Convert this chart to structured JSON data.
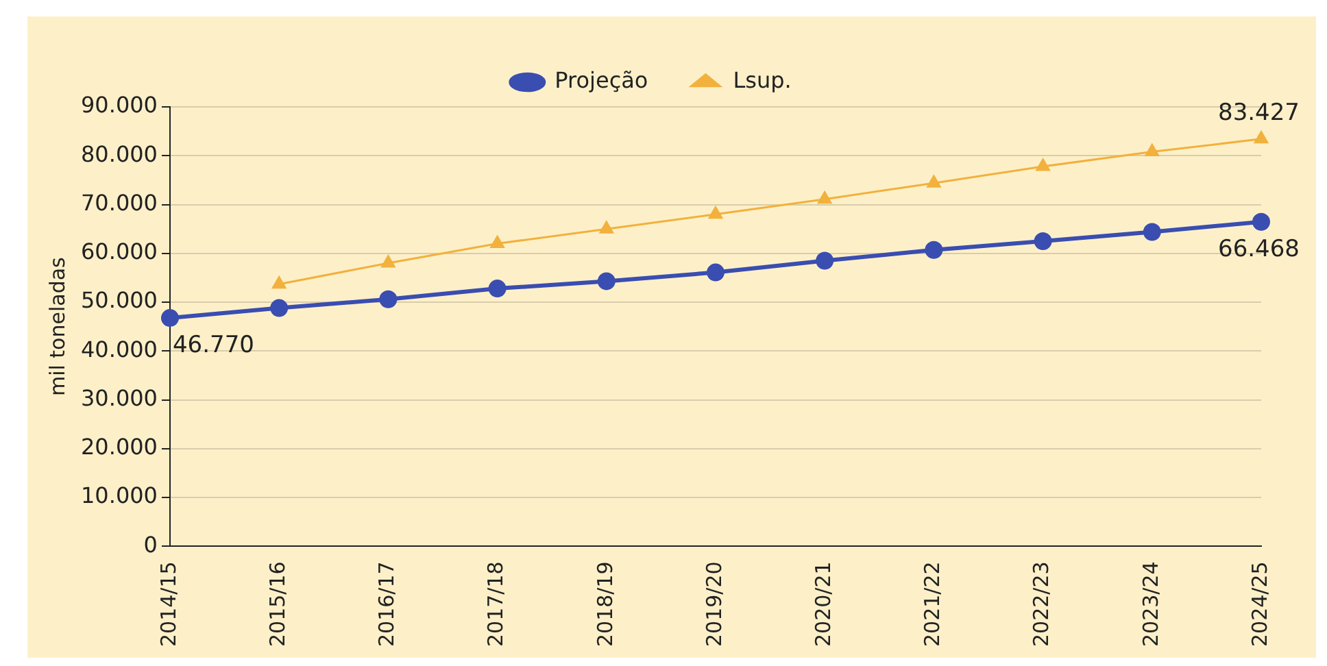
{
  "chart_data": {
    "type": "line",
    "ylabel": "mil toneladas",
    "categories": [
      "2014/15",
      "2015/16",
      "2016/17",
      "2017/18",
      "2018/19",
      "2019/20",
      "2020/21",
      "2021/22",
      "2022/23",
      "2023/24",
      "2024/25"
    ],
    "series": [
      {
        "name": "Projeção",
        "color": "#3a4db0",
        "marker": "circle",
        "values": [
          46770,
          48800,
          50600,
          52800,
          54300,
          56100,
          58500,
          60700,
          62500,
          64400,
          66468
        ],
        "value_labels": [
          "46.770",
          null,
          null,
          null,
          null,
          null,
          null,
          null,
          null,
          null,
          "66.468"
        ]
      },
      {
        "name": "Lsup.",
        "color": "#f2b13c",
        "marker": "triangle",
        "values": [
          null,
          53700,
          58000,
          62000,
          65000,
          68000,
          71100,
          74400,
          77800,
          80800,
          83427
        ],
        "value_labels": [
          null,
          null,
          null,
          null,
          null,
          null,
          null,
          null,
          null,
          null,
          "83.427"
        ]
      }
    ],
    "ylim": [
      0,
      90000
    ],
    "yticks": [
      {
        "value": 0,
        "label": "0"
      },
      {
        "value": 10000,
        "label": "10.000"
      },
      {
        "value": 20000,
        "label": "20.000"
      },
      {
        "value": 30000,
        "label": "30.000"
      },
      {
        "value": 40000,
        "label": "40.000"
      },
      {
        "value": 50000,
        "label": "50.000"
      },
      {
        "value": 60000,
        "label": "60.000"
      },
      {
        "value": 70000,
        "label": "70.000"
      },
      {
        "value": 80000,
        "label": "80.000"
      },
      {
        "value": 90000,
        "label": "90.000"
      }
    ],
    "grid": "y",
    "legend": "top",
    "line_style": "solid"
  }
}
